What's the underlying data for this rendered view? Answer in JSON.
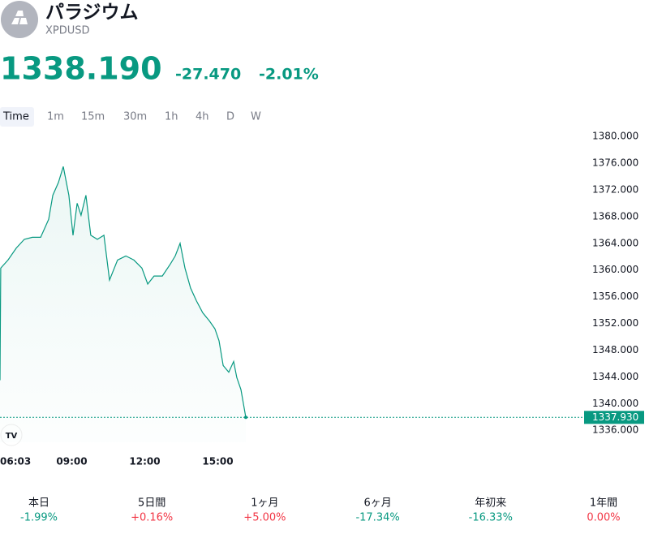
{
  "header": {
    "name": "パラジウム",
    "symbol": "XPDUSD",
    "price": "1338.190",
    "change": "-27.470",
    "change_percent": "-2.01%"
  },
  "timeframes": [
    "Time",
    "1m",
    "15m",
    "30m",
    "1h",
    "4h",
    "D",
    "W"
  ],
  "chart_data": {
    "type": "line",
    "color": "#089981",
    "x": [
      6.05,
      6.08,
      6.38,
      6.72,
      7.05,
      7.38,
      7.72,
      8.05,
      8.22,
      8.45,
      8.65,
      8.88,
      9.05,
      9.22,
      9.38,
      9.58,
      9.78,
      10.05,
      10.32,
      10.55,
      10.88,
      11.22,
      11.55,
      11.88,
      12.12,
      12.38,
      12.72,
      13.05,
      13.25,
      13.45,
      13.65,
      13.88,
      14.12,
      14.38,
      14.65,
      14.88,
      15.05,
      15.22,
      15.45,
      15.65,
      15.78,
      15.95,
      16.15
    ],
    "values": [
      1343.5,
      1360.3,
      1361.5,
      1363.3,
      1364.6,
      1364.9,
      1364.9,
      1367.6,
      1371.2,
      1373.1,
      1375.5,
      1371.2,
      1365.2,
      1370.0,
      1368.2,
      1371.2,
      1365.2,
      1364.6,
      1365.2,
      1358.5,
      1361.5,
      1362.1,
      1361.5,
      1360.3,
      1357.9,
      1359.1,
      1359.1,
      1360.9,
      1362.1,
      1364.0,
      1360.3,
      1357.3,
      1355.4,
      1353.6,
      1352.4,
      1351.2,
      1349.4,
      1345.7,
      1344.7,
      1346.3,
      1343.9,
      1342.1,
      1337.93
    ],
    "xlim": [
      6.05,
      30.05
    ],
    "xticks": [
      {
        "value": 6.05,
        "label": "06:03"
      },
      {
        "value": 9,
        "label": "09:00"
      },
      {
        "value": 12,
        "label": "12:00"
      },
      {
        "value": 15,
        "label": "15:00"
      }
    ],
    "ylim": [
      1334.2,
      1381.6
    ],
    "yticks": [
      {
        "value": 1336,
        "label": "1336.000"
      },
      {
        "value": 1340,
        "label": "1340.000"
      },
      {
        "value": 1344,
        "label": "1344.000"
      },
      {
        "value": 1348,
        "label": "1348.000"
      },
      {
        "value": 1352,
        "label": "1352.000"
      },
      {
        "value": 1356,
        "label": "1356.000"
      },
      {
        "value": 1360,
        "label": "1360.000"
      },
      {
        "value": 1364,
        "label": "1364.000"
      },
      {
        "value": 1368,
        "label": "1368.000"
      },
      {
        "value": 1372,
        "label": "1372.000"
      },
      {
        "value": 1376,
        "label": "1376.000"
      },
      {
        "value": 1380,
        "label": "1380.000"
      }
    ],
    "last_price": {
      "value": 1337.93,
      "label": "1337.930"
    }
  },
  "performance": [
    {
      "label": "本日",
      "value": "-1.99%",
      "color": "#089981"
    },
    {
      "label": "5日間",
      "value": "+0.16%",
      "color": "#f23645"
    },
    {
      "label": "1ヶ月",
      "value": "+5.00%",
      "color": "#f23645"
    },
    {
      "label": "6ヶ月",
      "value": "-17.34%",
      "color": "#089981"
    },
    {
      "label": "年初来",
      "value": "-16.33%",
      "color": "#089981"
    },
    {
      "label": "1年間",
      "value": "0.00%",
      "color": "#f23645"
    }
  ]
}
